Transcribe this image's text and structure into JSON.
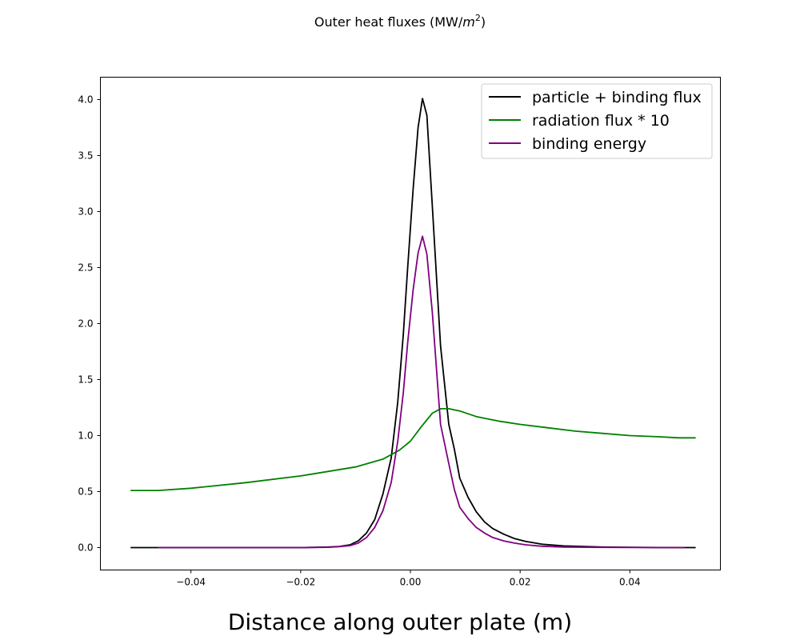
{
  "chart_data": {
    "type": "line",
    "title_prefix": "Outer heat fluxes (MW/",
    "title_unit_base": "m",
    "title_unit_exp": "2",
    "title_suffix": ")",
    "xlabel": "Distance along outer plate (m)",
    "ylabel": "",
    "xlim": [
      -0.0565,
      0.0565
    ],
    "ylim": [
      -0.2,
      4.2
    ],
    "xticks": [
      -0.04,
      -0.02,
      0.0,
      0.02,
      0.04
    ],
    "xtick_labels": [
      "−0.04",
      "−0.02",
      "0.00",
      "0.02",
      "0.04"
    ],
    "yticks": [
      0.0,
      0.5,
      1.0,
      1.5,
      2.0,
      2.5,
      3.0,
      3.5,
      4.0
    ],
    "ytick_labels": [
      "0.0",
      "0.5",
      "1.0",
      "1.5",
      "2.0",
      "2.5",
      "3.0",
      "3.5",
      "4.0"
    ],
    "grid": false,
    "legend_position": "top-right",
    "series": [
      {
        "name": "particle + binding flux",
        "color": "#000000",
        "x": [
          -0.051,
          -0.046,
          -0.03,
          -0.02,
          -0.015,
          -0.013,
          -0.011,
          -0.0095,
          -0.008,
          -0.0065,
          -0.005,
          -0.0035,
          -0.0023,
          -0.0013,
          -0.0005,
          0.0005,
          0.0014,
          0.0022,
          0.003,
          0.004,
          0.0055,
          0.007,
          0.008,
          0.009,
          0.0105,
          0.012,
          0.0135,
          0.015,
          0.017,
          0.019,
          0.021,
          0.024,
          0.028,
          0.035,
          0.045,
          0.052
        ],
        "y": [
          0.0,
          0.0,
          0.0,
          0.0,
          0.005,
          0.01,
          0.025,
          0.06,
          0.13,
          0.25,
          0.48,
          0.8,
          1.3,
          1.9,
          2.5,
          3.2,
          3.75,
          4.01,
          3.86,
          3.05,
          1.8,
          1.1,
          0.88,
          0.62,
          0.45,
          0.32,
          0.23,
          0.17,
          0.12,
          0.08,
          0.055,
          0.03,
          0.015,
          0.005,
          0.001,
          0.0
        ]
      },
      {
        "name": "radiation flux * 10",
        "color": "#008000",
        "x": [
          -0.051,
          -0.046,
          -0.04,
          -0.03,
          -0.02,
          -0.01,
          -0.005,
          -0.002,
          0.0,
          0.002,
          0.004,
          0.0055,
          0.007,
          0.009,
          0.012,
          0.016,
          0.02,
          0.025,
          0.03,
          0.035,
          0.04,
          0.045,
          0.049,
          0.052
        ],
        "y": [
          0.51,
          0.51,
          0.53,
          0.58,
          0.64,
          0.72,
          0.79,
          0.87,
          0.95,
          1.08,
          1.2,
          1.24,
          1.24,
          1.22,
          1.17,
          1.13,
          1.1,
          1.07,
          1.04,
          1.02,
          1.0,
          0.99,
          0.98,
          0.98
        ]
      },
      {
        "name": "binding energy",
        "color": "#800080",
        "x": [
          -0.046,
          -0.03,
          -0.02,
          -0.015,
          -0.013,
          -0.011,
          -0.0095,
          -0.008,
          -0.0065,
          -0.005,
          -0.0035,
          -0.0023,
          -0.0013,
          -0.0005,
          0.0005,
          0.0014,
          0.0022,
          0.003,
          0.004,
          0.0055,
          0.007,
          0.008,
          0.009,
          0.0105,
          0.012,
          0.0135,
          0.015,
          0.017,
          0.019,
          0.021,
          0.024,
          0.028,
          0.035,
          0.045,
          0.05
        ],
        "y": [
          0.0,
          0.0,
          0.0,
          0.003,
          0.008,
          0.018,
          0.04,
          0.09,
          0.18,
          0.33,
          0.58,
          0.95,
          1.38,
          1.83,
          2.3,
          2.63,
          2.78,
          2.62,
          2.1,
          1.1,
          0.75,
          0.52,
          0.36,
          0.26,
          0.18,
          0.13,
          0.09,
          0.06,
          0.04,
          0.025,
          0.012,
          0.005,
          0.002,
          0.0,
          0.0
        ]
      }
    ]
  }
}
